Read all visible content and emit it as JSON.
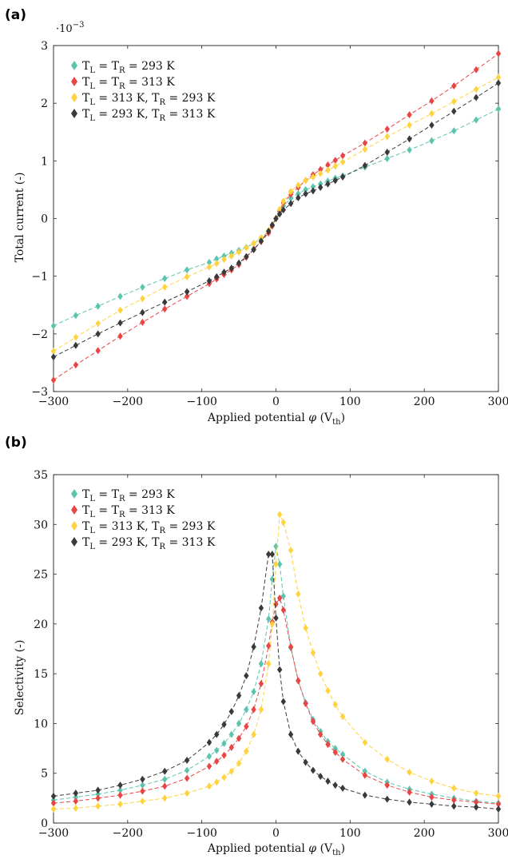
{
  "panels": [
    {
      "label": "(a)",
      "exponent": "·10",
      "exponent_power": "−3",
      "ylabel": "Total current (-)",
      "xlabel": "Applied potential",
      "xlabel_symbol": "φ",
      "xlabel_unit_prefix": "(V",
      "xlabel_unit_sub": "th",
      "xlabel_unit_suffix": ")"
    },
    {
      "label": "(b)",
      "ylabel": "Selectivity (-)",
      "xlabel": "Applied potential",
      "xlabel_symbol": "φ",
      "xlabel_unit_prefix": "(V",
      "xlabel_unit_sub": "th",
      "xlabel_unit_suffix": ")"
    }
  ],
  "legend": [
    {
      "pre": "T",
      "sub1": "L",
      "mid": " = T",
      "sub2": "R",
      "post": " = 293 K"
    },
    {
      "pre": "T",
      "sub1": "L",
      "mid": " = T",
      "sub2": "R",
      "post": " = 313 K"
    },
    {
      "pre": "T",
      "sub1": "L",
      "mid": " = 313 K, T",
      "sub2": "R",
      "post": " = 293 K"
    },
    {
      "pre": "T",
      "sub1": "L",
      "mid": " = 293 K, T",
      "sub2": "R",
      "post": " = 313 K"
    }
  ],
  "colors": [
    "#5cc4ad",
    "#e84545",
    "#ffd23f",
    "#3a3a3a"
  ],
  "chart_data": [
    {
      "type": "line",
      "marker": "diamond",
      "line_style": "dashed",
      "xlim": [
        -300,
        300
      ],
      "ylim": [
        -3,
        3
      ],
      "y_scale_factor": "1e-3",
      "xticks": [
        -300,
        -200,
        -100,
        0,
        100,
        200,
        300
      ],
      "yticks": [
        -3,
        -2,
        -1,
        0,
        1,
        2,
        3
      ],
      "xtick_labels": [
        "−300",
        "−200",
        "−100",
        "0",
        "100",
        "200",
        "300"
      ],
      "ytick_labels": [
        "−3",
        "−2",
        "−1",
        "0",
        "1",
        "2",
        "3"
      ],
      "legend_position": "top-left",
      "series": [
        {
          "x": [
            -300,
            -270,
            -240,
            -210,
            -180,
            -150,
            -120,
            -90,
            -80,
            -70,
            -60,
            -50,
            -40,
            -30,
            -20,
            -10,
            -5,
            0,
            5,
            10,
            20,
            30,
            40,
            50,
            60,
            70,
            80,
            90,
            120,
            150,
            180,
            210,
            240,
            270,
            300
          ],
          "y": [
            -1.86,
            -1.68,
            -1.52,
            -1.35,
            -1.19,
            -1.04,
            -0.89,
            -0.76,
            -0.7,
            -0.65,
            -0.6,
            -0.55,
            -0.5,
            -0.43,
            -0.35,
            -0.22,
            -0.12,
            0.0,
            0.12,
            0.22,
            0.35,
            0.43,
            0.5,
            0.55,
            0.6,
            0.65,
            0.7,
            0.74,
            0.89,
            1.04,
            1.19,
            1.35,
            1.52,
            1.71,
            1.9
          ]
        },
        {
          "x": [
            -300,
            -270,
            -240,
            -210,
            -180,
            -150,
            -120,
            -90,
            -80,
            -70,
            -60,
            -50,
            -40,
            -30,
            -20,
            -10,
            -5,
            0,
            5,
            10,
            20,
            30,
            40,
            50,
            60,
            70,
            80,
            90,
            120,
            150,
            180,
            210,
            240,
            270,
            300
          ],
          "y": [
            -2.8,
            -2.54,
            -2.29,
            -2.04,
            -1.8,
            -1.57,
            -1.35,
            -1.13,
            -1.05,
            -0.97,
            -0.89,
            -0.8,
            -0.67,
            -0.53,
            -0.4,
            -0.25,
            -0.13,
            0.0,
            0.13,
            0.27,
            0.42,
            0.54,
            0.66,
            0.76,
            0.85,
            0.93,
            1.01,
            1.09,
            1.31,
            1.55,
            1.8,
            2.04,
            2.3,
            2.58,
            2.86
          ]
        },
        {
          "x": [
            -300,
            -270,
            -240,
            -210,
            -180,
            -150,
            -120,
            -90,
            -80,
            -70,
            -60,
            -50,
            -40,
            -30,
            -20,
            -10,
            -5,
            0,
            5,
            10,
            20,
            30,
            40,
            50,
            60,
            70,
            80,
            90,
            120,
            150,
            180,
            210,
            240,
            270,
            300
          ],
          "y": [
            -2.3,
            -2.06,
            -1.82,
            -1.59,
            -1.39,
            -1.19,
            -1.01,
            -0.84,
            -0.78,
            -0.71,
            -0.65,
            -0.58,
            -0.51,
            -0.43,
            -0.33,
            -0.21,
            -0.11,
            0.0,
            0.16,
            0.3,
            0.47,
            0.58,
            0.66,
            0.72,
            0.78,
            0.84,
            0.91,
            0.98,
            1.2,
            1.42,
            1.62,
            1.82,
            2.03,
            2.24,
            2.45
          ]
        },
        {
          "x": [
            -300,
            -270,
            -240,
            -210,
            -180,
            -150,
            -120,
            -90,
            -80,
            -70,
            -60,
            -50,
            -40,
            -30,
            -20,
            -10,
            -5,
            0,
            5,
            10,
            20,
            30,
            40,
            50,
            60,
            70,
            80,
            90,
            120,
            150,
            180,
            210,
            240,
            270,
            300
          ],
          "y": [
            -2.4,
            -2.2,
            -2.0,
            -1.81,
            -1.63,
            -1.45,
            -1.27,
            -1.08,
            -1.01,
            -0.93,
            -0.86,
            -0.77,
            -0.66,
            -0.54,
            -0.39,
            -0.22,
            -0.11,
            0.0,
            0.08,
            0.15,
            0.26,
            0.36,
            0.43,
            0.48,
            0.54,
            0.6,
            0.66,
            0.72,
            0.92,
            1.15,
            1.38,
            1.62,
            1.86,
            2.1,
            2.35
          ]
        }
      ]
    },
    {
      "type": "line",
      "marker": "diamond",
      "line_style": "dashed",
      "xlim": [
        -300,
        300
      ],
      "ylim": [
        0,
        35
      ],
      "xticks": [
        -300,
        -200,
        -100,
        0,
        100,
        200,
        300
      ],
      "yticks": [
        0,
        5,
        10,
        15,
        20,
        25,
        30,
        35
      ],
      "xtick_labels": [
        "−300",
        "−200",
        "−100",
        "0",
        "100",
        "200",
        "300"
      ],
      "ytick_labels": [
        "0",
        "5",
        "10",
        "15",
        "20",
        "25",
        "30",
        "35"
      ],
      "legend_position": "top-left",
      "series": [
        {
          "x": [
            -300,
            -270,
            -240,
            -210,
            -180,
            -150,
            -120,
            -90,
            -80,
            -70,
            -60,
            -50,
            -40,
            -30,
            -20,
            -10,
            -5,
            0,
            5,
            10,
            20,
            30,
            40,
            50,
            60,
            70,
            80,
            90,
            120,
            150,
            180,
            210,
            240,
            270,
            300
          ],
          "y": [
            2.3,
            2.6,
            2.9,
            3.3,
            3.8,
            4.4,
            5.3,
            6.7,
            7.3,
            8.0,
            8.9,
            10.0,
            11.4,
            13.2,
            16.0,
            20.5,
            24.5,
            27.8,
            26.0,
            22.8,
            17.6,
            14.3,
            12.1,
            10.4,
            9.2,
            8.2,
            7.5,
            6.9,
            5.2,
            4.1,
            3.4,
            2.9,
            2.5,
            2.2,
            2.0
          ]
        },
        {
          "x": [
            -300,
            -270,
            -240,
            -210,
            -180,
            -150,
            -120,
            -90,
            -80,
            -70,
            -60,
            -50,
            -40,
            -30,
            -20,
            -10,
            -5,
            0,
            5,
            10,
            20,
            30,
            40,
            50,
            60,
            70,
            80,
            90,
            120,
            150,
            180,
            210,
            240,
            270,
            300
          ],
          "y": [
            2.0,
            2.2,
            2.5,
            2.8,
            3.2,
            3.7,
            4.5,
            5.7,
            6.2,
            6.8,
            7.6,
            8.5,
            9.7,
            11.4,
            14.0,
            17.8,
            20.2,
            22.0,
            22.6,
            21.4,
            17.7,
            14.3,
            12.0,
            10.2,
            8.9,
            7.9,
            7.1,
            6.4,
            4.8,
            3.8,
            3.1,
            2.6,
            2.3,
            2.1,
            1.9
          ]
        },
        {
          "x": [
            -300,
            -270,
            -240,
            -210,
            -180,
            -150,
            -120,
            -90,
            -80,
            -70,
            -60,
            -50,
            -40,
            -30,
            -20,
            -10,
            -5,
            0,
            5,
            10,
            20,
            30,
            40,
            50,
            60,
            70,
            80,
            90,
            120,
            150,
            180,
            210,
            240,
            270,
            300
          ],
          "y": [
            1.4,
            1.5,
            1.7,
            1.9,
            2.2,
            2.5,
            3.0,
            3.7,
            4.1,
            4.6,
            5.2,
            6.0,
            7.2,
            8.9,
            11.4,
            16.0,
            20.0,
            26.0,
            31.0,
            30.2,
            27.4,
            23.0,
            19.6,
            17.1,
            15.0,
            13.3,
            11.9,
            10.7,
            8.1,
            6.4,
            5.1,
            4.2,
            3.5,
            3.0,
            2.7
          ]
        },
        {
          "x": [
            -300,
            -270,
            -240,
            -210,
            -180,
            -150,
            -120,
            -90,
            -80,
            -70,
            -60,
            -50,
            -40,
            -30,
            -20,
            -10,
            -5,
            0,
            5,
            10,
            20,
            30,
            40,
            50,
            60,
            70,
            80,
            90,
            120,
            150,
            180,
            210,
            240,
            270,
            300
          ],
          "y": [
            2.7,
            3.0,
            3.3,
            3.8,
            4.4,
            5.2,
            6.3,
            8.1,
            8.9,
            9.9,
            11.2,
            12.8,
            14.8,
            17.7,
            21.6,
            27.0,
            27.0,
            20.6,
            15.4,
            12.2,
            8.9,
            7.2,
            6.1,
            5.3,
            4.7,
            4.2,
            3.8,
            3.5,
            2.8,
            2.4,
            2.1,
            1.9,
            1.7,
            1.6,
            1.4
          ]
        }
      ]
    }
  ]
}
